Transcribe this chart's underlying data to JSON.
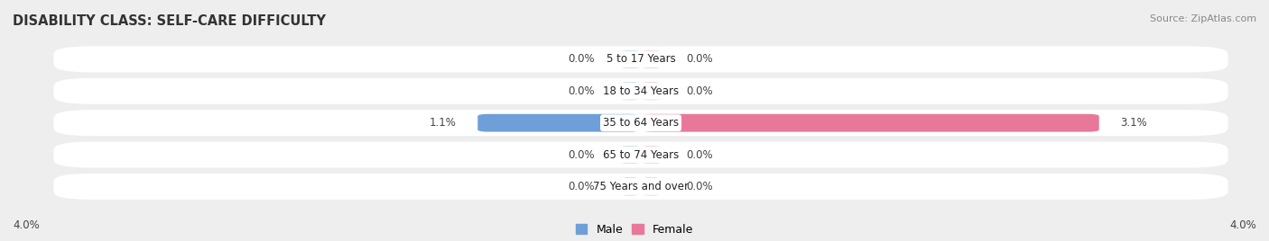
{
  "title": "DISABILITY CLASS: SELF-CARE DIFFICULTY",
  "source": "Source: ZipAtlas.com",
  "categories": [
    "5 to 17 Years",
    "18 to 34 Years",
    "35 to 64 Years",
    "65 to 74 Years",
    "75 Years and over"
  ],
  "male_values": [
    0.0,
    0.0,
    1.1,
    0.0,
    0.0
  ],
  "female_values": [
    0.0,
    0.0,
    3.1,
    0.0,
    0.0
  ],
  "max_val": 4.0,
  "male_stub_color": "#a8c4e0",
  "female_stub_color": "#f0aabf",
  "male_bar_color": "#6f9fd8",
  "female_bar_color": "#e8789a",
  "bg_color": "#eeeeee",
  "row_bg_color": "#f8f8f8",
  "title_fontsize": 10.5,
  "label_fontsize": 8.5,
  "value_fontsize": 8.5,
  "source_fontsize": 8,
  "legend_fontsize": 9,
  "x_label": "4.0%"
}
